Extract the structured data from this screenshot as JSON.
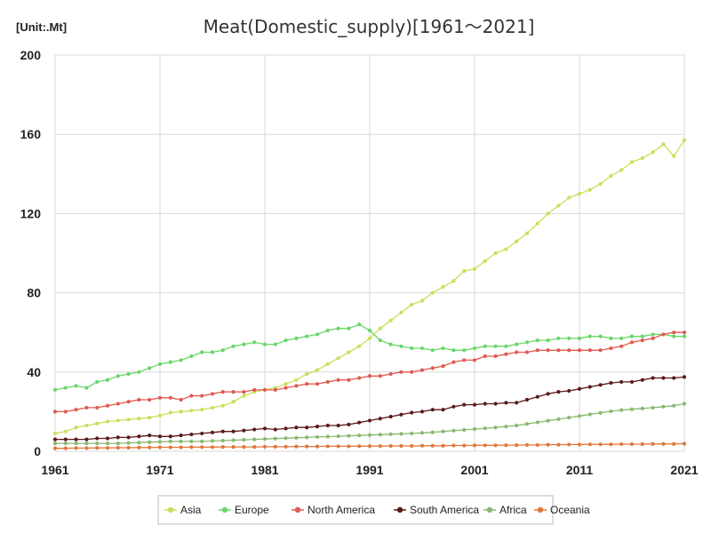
{
  "chart_data": {
    "type": "line",
    "title": "Meat(Domestic_supply)[1961～2021]",
    "unit_label": "[Unit:.Mt]",
    "xlabel": "",
    "ylabel": "",
    "xlim": [
      1961,
      2021
    ],
    "ylim": [
      0,
      200
    ],
    "x_ticks": [
      "1961",
      "1971",
      "1981",
      "1991",
      "2001",
      "2011",
      "2021"
    ],
    "y_ticks": [
      "0",
      "40",
      "80",
      "120",
      "160",
      "200"
    ],
    "grid": true,
    "legend_position": "bottom",
    "x": [
      1961,
      1962,
      1963,
      1964,
      1965,
      1966,
      1967,
      1968,
      1969,
      1970,
      1971,
      1972,
      1973,
      1974,
      1975,
      1976,
      1977,
      1978,
      1979,
      1980,
      1981,
      1982,
      1983,
      1984,
      1985,
      1986,
      1987,
      1988,
      1989,
      1990,
      1991,
      1992,
      1993,
      1994,
      1995,
      1996,
      1997,
      1998,
      1999,
      2000,
      2001,
      2002,
      2003,
      2004,
      2005,
      2006,
      2007,
      2008,
      2009,
      2010,
      2011,
      2012,
      2013,
      2014,
      2015,
      2016,
      2017,
      2018,
      2019,
      2020,
      2021
    ],
    "series": [
      {
        "name": "Asia",
        "color": "#c8e05a",
        "values": [
          9,
          10,
          12,
          13,
          14,
          15,
          15.5,
          16,
          16.5,
          17,
          18,
          19.5,
          20,
          20.5,
          21,
          22,
          23,
          25,
          28,
          30,
          31,
          32,
          34,
          36,
          39,
          41,
          44,
          47,
          50,
          53,
          57,
          62,
          66,
          70,
          74,
          76,
          80,
          83,
          86,
          91,
          92,
          96,
          100,
          102,
          106,
          110,
          115,
          120,
          124,
          128,
          130,
          132,
          135,
          139,
          142,
          146,
          148,
          151,
          155,
          149,
          157
        ]
      },
      {
        "name": "Europe",
        "color": "#6ad66a",
        "values": [
          31,
          32,
          33,
          32,
          35,
          36,
          38,
          39,
          40,
          42,
          44,
          45,
          46,
          48,
          50,
          50,
          51,
          53,
          54,
          55,
          54,
          54,
          56,
          57,
          58,
          59,
          61,
          62,
          62,
          64,
          61,
          56,
          54,
          53,
          52,
          52,
          51,
          52,
          51,
          51,
          52,
          53,
          53,
          53,
          54,
          55,
          56,
          56,
          57,
          57,
          57,
          58,
          58,
          57,
          57,
          58,
          58,
          59,
          59,
          58,
          58
        ]
      },
      {
        "name": "North America",
        "color": "#e05a50",
        "values": [
          20,
          20,
          21,
          22,
          22,
          23,
          24,
          25,
          26,
          26,
          27,
          27,
          26,
          28,
          28,
          29,
          30,
          30,
          30,
          31,
          31,
          31,
          32,
          33,
          34,
          34,
          35,
          36,
          36,
          37,
          38,
          38,
          39,
          40,
          40,
          41,
          42,
          43,
          45,
          46,
          46,
          48,
          48,
          49,
          50,
          50,
          51,
          51,
          51,
          51,
          51,
          51,
          51,
          52,
          53,
          55,
          56,
          57,
          59,
          60,
          60
        ]
      },
      {
        "name": "South America",
        "color": "#5a1a1a",
        "values": [
          6,
          6,
          6,
          6,
          6.5,
          6.5,
          7,
          7,
          7.5,
          8,
          7.5,
          7.5,
          8,
          8.5,
          9,
          9.5,
          10,
          10,
          10.5,
          11,
          11.5,
          11,
          11.5,
          12,
          12,
          12.5,
          13,
          13,
          13.5,
          14.5,
          15.5,
          16.5,
          17.5,
          18.5,
          19.5,
          20,
          21,
          21,
          22.5,
          23.5,
          23.5,
          24,
          24,
          24.5,
          24.5,
          26,
          27.5,
          29,
          30,
          30.5,
          31.5,
          32.5,
          33.5,
          34.5,
          35,
          35,
          36,
          37,
          37,
          37,
          37.5
        ]
      },
      {
        "name": "Africa",
        "color": "#8ab870",
        "values": [
          4,
          4,
          4,
          4,
          4,
          4,
          4,
          4.2,
          4.4,
          4.6,
          4.8,
          5,
          5,
          5,
          5,
          5.2,
          5.4,
          5.6,
          5.8,
          6,
          6.2,
          6.4,
          6.6,
          6.8,
          7,
          7.2,
          7.4,
          7.6,
          7.8,
          8,
          8.2,
          8.4,
          8.6,
          8.8,
          9,
          9.3,
          9.6,
          10,
          10.4,
          10.8,
          11.2,
          11.6,
          12,
          12.5,
          13,
          13.8,
          14.6,
          15.4,
          16.2,
          17,
          17.8,
          18.6,
          19.4,
          20.2,
          20.8,
          21.2,
          21.6,
          22,
          22.5,
          23,
          24
        ]
      },
      {
        "name": "Oceania",
        "color": "#e0783a",
        "values": [
          1.5,
          1.5,
          1.6,
          1.6,
          1.7,
          1.7,
          1.8,
          1.8,
          1.9,
          1.9,
          2,
          2,
          2,
          2.1,
          2.1,
          2.1,
          2.2,
          2.2,
          2.2,
          2.2,
          2.3,
          2.3,
          2.3,
          2.4,
          2.4,
          2.4,
          2.5,
          2.5,
          2.5,
          2.6,
          2.6,
          2.6,
          2.7,
          2.7,
          2.7,
          2.8,
          2.8,
          2.8,
          2.9,
          2.9,
          3,
          3,
          3,
          3.1,
          3.1,
          3.2,
          3.2,
          3.3,
          3.3,
          3.4,
          3.4,
          3.5,
          3.5,
          3.5,
          3.6,
          3.6,
          3.6,
          3.7,
          3.7,
          3.7,
          3.8
        ]
      }
    ]
  }
}
